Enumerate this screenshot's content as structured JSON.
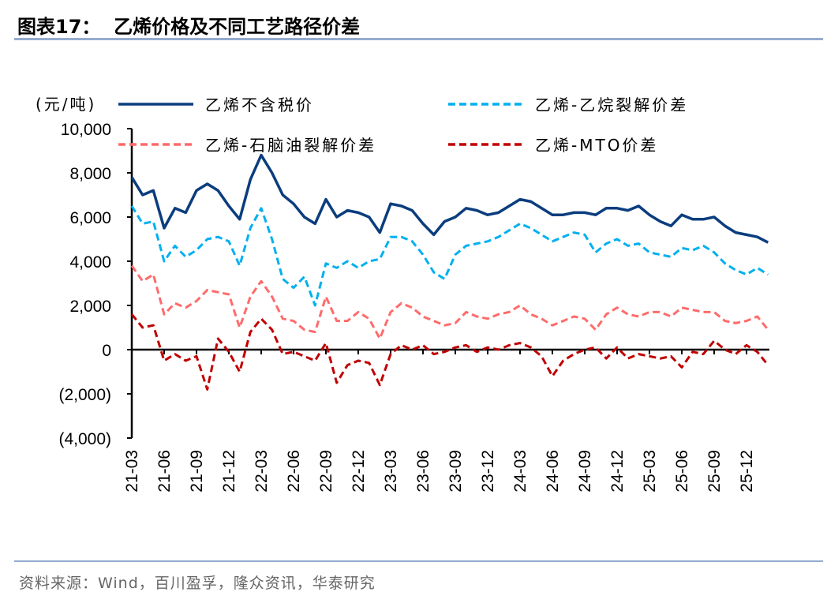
{
  "title": "图表17：  乙烯价格及不同工艺路径价差",
  "source": "资料来源：Wind，百川盈孚，隆众资讯，华泰研究",
  "chart_data": {
    "type": "line",
    "title": "",
    "ylabel": "(元/吨)",
    "ylim": [
      -4000,
      10000
    ],
    "yticks": [
      10000,
      8000,
      6000,
      4000,
      2000,
      0,
      -2000,
      -4000
    ],
    "ytick_labels": [
      "10,000",
      "8,000",
      "6,000",
      "4,000",
      "2,000",
      "0",
      "(2,000)",
      "(4,000)"
    ],
    "xtick_labels": [
      "21-03",
      "21-06",
      "21-09",
      "21-12",
      "22-03",
      "22-06",
      "22-09",
      "22-12",
      "23-03",
      "23-06",
      "23-09",
      "23-12",
      "24-03",
      "24-06",
      "24-09",
      "24-12",
      "25-03",
      "25-06",
      "25-09",
      "25-12"
    ],
    "x": [
      "21-03",
      "21-04",
      "21-05",
      "21-06",
      "21-07",
      "21-08",
      "21-09",
      "21-10",
      "21-11",
      "21-12",
      "22-01",
      "22-02",
      "22-03",
      "22-04",
      "22-05",
      "22-06",
      "22-07",
      "22-08",
      "22-09",
      "22-10",
      "22-11",
      "22-12",
      "23-01",
      "23-02",
      "23-03",
      "23-04",
      "23-05",
      "23-06",
      "23-07",
      "23-08",
      "23-09",
      "23-10",
      "23-11",
      "23-12",
      "24-01",
      "24-02",
      "24-03",
      "24-04",
      "24-05",
      "24-06",
      "24-07",
      "24-08",
      "24-09",
      "24-10",
      "24-11",
      "24-12",
      "25-01",
      "25-02",
      "25-03",
      "25-04",
      "25-05",
      "25-06",
      "25-07",
      "25-08",
      "25-09",
      "25-10",
      "25-11",
      "25-12",
      "26-01",
      "26-02"
    ],
    "grid": false,
    "legend": "top",
    "series": [
      {
        "name": "乙烯不含税价",
        "color": "#0b3d7e",
        "style": "solid",
        "values": [
          7800,
          7000,
          7200,
          5500,
          6400,
          6200,
          7200,
          7500,
          7200,
          6500,
          5900,
          7700,
          8800,
          8000,
          7000,
          6600,
          6000,
          5700,
          6800,
          6000,
          6300,
          6200,
          6000,
          5300,
          6600,
          6500,
          6300,
          5700,
          5200,
          5800,
          6000,
          6400,
          6300,
          6100,
          6200,
          6500,
          6800,
          6700,
          6400,
          6100,
          6100,
          6200,
          6200,
          6100,
          6400,
          6400,
          6300,
          6500,
          6100,
          5800,
          5600,
          6100,
          5900,
          5900,
          6000,
          5600,
          5300,
          5200,
          5100,
          4850
        ]
      },
      {
        "name": "乙烯-乙烷裂解价差",
        "color": "#00b0f0",
        "style": "dashed",
        "values": [
          6500,
          5700,
          5800,
          4000,
          4700,
          4200,
          4500,
          5000,
          5100,
          4900,
          3800,
          5500,
          6400,
          5000,
          3200,
          2800,
          3300,
          2000,
          3900,
          3700,
          4000,
          3700,
          4000,
          4100,
          5100,
          5100,
          4900,
          4300,
          3500,
          3200,
          4300,
          4700,
          4800,
          4900,
          5100,
          5400,
          5700,
          5500,
          5200,
          4900,
          5100,
          5300,
          5200,
          4400,
          4800,
          5000,
          4700,
          4800,
          4400,
          4300,
          4200,
          4600,
          4500,
          4700,
          4400,
          3900,
          3600,
          3400,
          3700,
          3400
        ]
      },
      {
        "name": "乙烯-石脑油裂解价差",
        "color": "#ff6b6b",
        "style": "dashed",
        "values": [
          3800,
          3100,
          3400,
          1600,
          2100,
          1900,
          2200,
          2700,
          2600,
          2500,
          1000,
          2400,
          3100,
          2400,
          1400,
          1300,
          900,
          800,
          2400,
          1300,
          1300,
          1700,
          1400,
          500,
          1700,
          2100,
          1900,
          1500,
          1300,
          1100,
          1200,
          1700,
          1500,
          1400,
          1600,
          1700,
          2000,
          1600,
          1400,
          1100,
          1300,
          1500,
          1400,
          900,
          1600,
          1900,
          1600,
          1500,
          1700,
          1700,
          1500,
          1900,
          1800,
          1700,
          1700,
          1300,
          1200,
          1300,
          1500,
          900
        ]
      },
      {
        "name": "乙烯-MTO价差",
        "color": "#c00000",
        "style": "dashed",
        "values": [
          1600,
          1000,
          1100,
          -500,
          -200,
          -500,
          -300,
          -1800,
          500,
          -100,
          -1000,
          800,
          1400,
          900,
          -200,
          -100,
          -300,
          -500,
          300,
          -1500,
          -700,
          -500,
          -600,
          -1600,
          -200,
          200,
          0,
          200,
          -200,
          -100,
          100,
          200,
          -100,
          100,
          0,
          200,
          300,
          100,
          -300,
          -1200,
          -500,
          -200,
          0,
          100,
          -400,
          100,
          -400,
          -200,
          -300,
          -400,
          -300,
          -800,
          -100,
          -200,
          400,
          0,
          -200,
          200,
          -100,
          -700
        ]
      }
    ]
  }
}
